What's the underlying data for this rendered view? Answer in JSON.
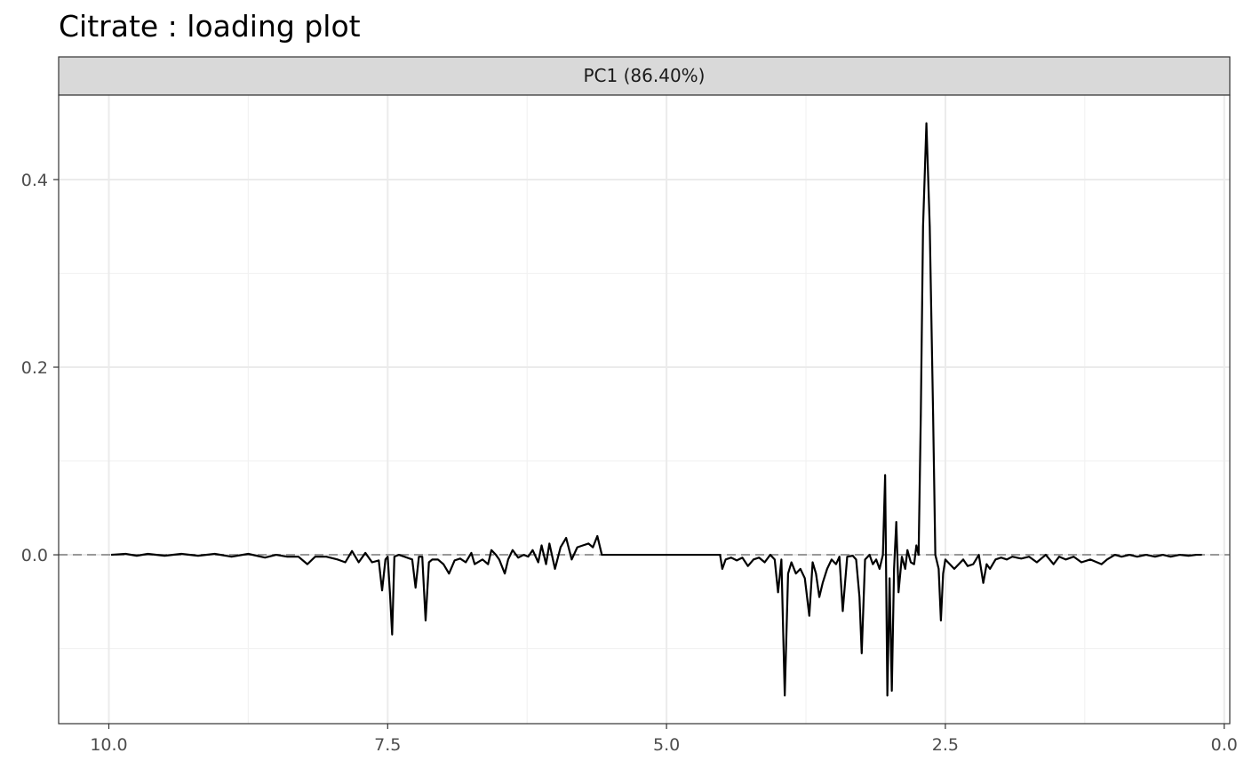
{
  "chart_data": {
    "type": "line",
    "title": "Citrate : loading plot",
    "facet_label": "PC1 (86.40%)",
    "xlabel": "",
    "ylabel": "",
    "x_reversed": true,
    "xlim": [
      10.45,
      -0.05
    ],
    "ylim": [
      -0.18,
      0.49
    ],
    "x_ticks": [
      10.0,
      7.5,
      5.0,
      2.5,
      0.0
    ],
    "x_tick_labels": [
      "10.0",
      "7.5",
      "5.0",
      "2.5",
      "0.0"
    ],
    "y_ticks": [
      0.0,
      0.2,
      0.4
    ],
    "y_tick_labels": [
      "0.0",
      "0.2",
      "0.4"
    ],
    "grid": true,
    "reference_line": {
      "y": 0.0,
      "style": "dashed",
      "color": "#999999"
    },
    "line_color": "#000000",
    "series": [
      {
        "values": [
          {
            "x": 9.98,
            "y": 0.0
          },
          {
            "x": 9.85,
            "y": 0.001
          },
          {
            "x": 9.75,
            "y": -0.001
          },
          {
            "x": 9.65,
            "y": 0.001
          },
          {
            "x": 9.5,
            "y": -0.001
          },
          {
            "x": 9.35,
            "y": 0.001
          },
          {
            "x": 9.2,
            "y": -0.001
          },
          {
            "x": 9.05,
            "y": 0.001
          },
          {
            "x": 8.9,
            "y": -0.002
          },
          {
            "x": 8.75,
            "y": 0.001
          },
          {
            "x": 8.6,
            "y": -0.003
          },
          {
            "x": 8.5,
            "y": 0.0
          },
          {
            "x": 8.4,
            "y": -0.002
          },
          {
            "x": 8.3,
            "y": -0.002
          },
          {
            "x": 8.22,
            "y": -0.01
          },
          {
            "x": 8.15,
            "y": -0.002
          },
          {
            "x": 8.05,
            "y": -0.002
          },
          {
            "x": 7.95,
            "y": -0.005
          },
          {
            "x": 7.88,
            "y": -0.008
          },
          {
            "x": 7.82,
            "y": 0.004
          },
          {
            "x": 7.76,
            "y": -0.008
          },
          {
            "x": 7.7,
            "y": 0.002
          },
          {
            "x": 7.64,
            "y": -0.008
          },
          {
            "x": 7.58,
            "y": -0.006
          },
          {
            "x": 7.55,
            "y": -0.038
          },
          {
            "x": 7.52,
            "y": -0.005
          },
          {
            "x": 7.5,
            "y": -0.002
          },
          {
            "x": 7.48,
            "y": -0.04
          },
          {
            "x": 7.46,
            "y": -0.085
          },
          {
            "x": 7.44,
            "y": -0.002
          },
          {
            "x": 7.4,
            "y": 0.0
          },
          {
            "x": 7.35,
            "y": -0.002
          },
          {
            "x": 7.28,
            "y": -0.005
          },
          {
            "x": 7.25,
            "y": -0.035
          },
          {
            "x": 7.22,
            "y": -0.002
          },
          {
            "x": 7.19,
            "y": -0.002
          },
          {
            "x": 7.16,
            "y": -0.07
          },
          {
            "x": 7.13,
            "y": -0.008
          },
          {
            "x": 7.1,
            "y": -0.005
          },
          {
            "x": 7.05,
            "y": -0.005
          },
          {
            "x": 7.0,
            "y": -0.01
          },
          {
            "x": 6.95,
            "y": -0.02
          },
          {
            "x": 6.9,
            "y": -0.006
          },
          {
            "x": 6.85,
            "y": -0.004
          },
          {
            "x": 6.8,
            "y": -0.008
          },
          {
            "x": 6.75,
            "y": 0.002
          },
          {
            "x": 6.72,
            "y": -0.01
          },
          {
            "x": 6.65,
            "y": -0.005
          },
          {
            "x": 6.6,
            "y": -0.01
          },
          {
            "x": 6.57,
            "y": 0.005
          },
          {
            "x": 6.53,
            "y": 0.0
          },
          {
            "x": 6.5,
            "y": -0.005
          },
          {
            "x": 6.45,
            "y": -0.02
          },
          {
            "x": 6.42,
            "y": -0.005
          },
          {
            "x": 6.38,
            "y": 0.005
          },
          {
            "x": 6.33,
            "y": -0.003
          },
          {
            "x": 6.28,
            "y": 0.0
          },
          {
            "x": 6.24,
            "y": -0.002
          },
          {
            "x": 6.2,
            "y": 0.005
          },
          {
            "x": 6.15,
            "y": -0.008
          },
          {
            "x": 6.12,
            "y": 0.01
          },
          {
            "x": 6.08,
            "y": -0.01
          },
          {
            "x": 6.05,
            "y": 0.012
          },
          {
            "x": 6.0,
            "y": -0.015
          },
          {
            "x": 5.95,
            "y": 0.008
          },
          {
            "x": 5.9,
            "y": 0.018
          },
          {
            "x": 5.85,
            "y": -0.005
          },
          {
            "x": 5.8,
            "y": 0.008
          },
          {
            "x": 5.75,
            "y": 0.01
          },
          {
            "x": 5.7,
            "y": 0.012
          },
          {
            "x": 5.66,
            "y": 0.008
          },
          {
            "x": 5.62,
            "y": 0.02
          },
          {
            "x": 5.58,
            "y": 0.0
          },
          {
            "x": 5.0,
            "y": 0.0
          },
          {
            "x": 4.52,
            "y": 0.0
          },
          {
            "x": 4.5,
            "y": -0.015
          },
          {
            "x": 4.47,
            "y": -0.005
          },
          {
            "x": 4.42,
            "y": -0.003
          },
          {
            "x": 4.37,
            "y": -0.006
          },
          {
            "x": 4.32,
            "y": -0.003
          },
          {
            "x": 4.27,
            "y": -0.012
          },
          {
            "x": 4.22,
            "y": -0.005
          },
          {
            "x": 4.17,
            "y": -0.003
          },
          {
            "x": 4.12,
            "y": -0.008
          },
          {
            "x": 4.07,
            "y": 0.0
          },
          {
            "x": 4.03,
            "y": -0.005
          },
          {
            "x": 4.0,
            "y": -0.04
          },
          {
            "x": 3.97,
            "y": -0.005
          },
          {
            "x": 3.94,
            "y": -0.15
          },
          {
            "x": 3.91,
            "y": -0.02
          },
          {
            "x": 3.88,
            "y": -0.008
          },
          {
            "x": 3.84,
            "y": -0.02
          },
          {
            "x": 3.8,
            "y": -0.015
          },
          {
            "x": 3.76,
            "y": -0.025
          },
          {
            "x": 3.72,
            "y": -0.065
          },
          {
            "x": 3.69,
            "y": -0.008
          },
          {
            "x": 3.66,
            "y": -0.02
          },
          {
            "x": 3.63,
            "y": -0.045
          },
          {
            "x": 3.6,
            "y": -0.03
          },
          {
            "x": 3.56,
            "y": -0.015
          },
          {
            "x": 3.52,
            "y": -0.005
          },
          {
            "x": 3.48,
            "y": -0.01
          },
          {
            "x": 3.45,
            "y": -0.002
          },
          {
            "x": 3.42,
            "y": -0.06
          },
          {
            "x": 3.38,
            "y": -0.002
          },
          {
            "x": 3.33,
            "y": -0.001
          },
          {
            "x": 3.3,
            "y": -0.005
          },
          {
            "x": 3.27,
            "y": -0.045
          },
          {
            "x": 3.25,
            "y": -0.105
          },
          {
            "x": 3.22,
            "y": -0.005
          },
          {
            "x": 3.18,
            "y": 0.0
          },
          {
            "x": 3.15,
            "y": -0.01
          },
          {
            "x": 3.12,
            "y": -0.005
          },
          {
            "x": 3.09,
            "y": -0.015
          },
          {
            "x": 3.06,
            "y": 0.0
          },
          {
            "x": 3.04,
            "y": 0.085
          },
          {
            "x": 3.02,
            "y": -0.15
          },
          {
            "x": 3.0,
            "y": -0.025
          },
          {
            "x": 2.98,
            "y": -0.145
          },
          {
            "x": 2.96,
            "y": -0.015
          },
          {
            "x": 2.94,
            "y": 0.035
          },
          {
            "x": 2.92,
            "y": -0.04
          },
          {
            "x": 2.89,
            "y": -0.002
          },
          {
            "x": 2.86,
            "y": -0.015
          },
          {
            "x": 2.84,
            "y": 0.005
          },
          {
            "x": 2.81,
            "y": -0.008
          },
          {
            "x": 2.78,
            "y": -0.01
          },
          {
            "x": 2.76,
            "y": 0.01
          },
          {
            "x": 2.74,
            "y": 0.0
          },
          {
            "x": 2.72,
            "y": 0.15
          },
          {
            "x": 2.7,
            "y": 0.35
          },
          {
            "x": 2.67,
            "y": 0.46
          },
          {
            "x": 2.64,
            "y": 0.35
          },
          {
            "x": 2.61,
            "y": 0.15
          },
          {
            "x": 2.59,
            "y": 0.0
          },
          {
            "x": 2.56,
            "y": -0.015
          },
          {
            "x": 2.54,
            "y": -0.07
          },
          {
            "x": 2.52,
            "y": -0.02
          },
          {
            "x": 2.5,
            "y": -0.005
          },
          {
            "x": 2.46,
            "y": -0.01
          },
          {
            "x": 2.42,
            "y": -0.015
          },
          {
            "x": 2.38,
            "y": -0.01
          },
          {
            "x": 2.34,
            "y": -0.005
          },
          {
            "x": 2.3,
            "y": -0.012
          },
          {
            "x": 2.25,
            "y": -0.01
          },
          {
            "x": 2.2,
            "y": 0.0
          },
          {
            "x": 2.16,
            "y": -0.03
          },
          {
            "x": 2.13,
            "y": -0.01
          },
          {
            "x": 2.1,
            "y": -0.015
          },
          {
            "x": 2.05,
            "y": -0.005
          },
          {
            "x": 2.0,
            "y": -0.003
          },
          {
            "x": 1.95,
            "y": -0.005
          },
          {
            "x": 1.9,
            "y": -0.002
          },
          {
            "x": 1.82,
            "y": -0.004
          },
          {
            "x": 1.75,
            "y": -0.002
          },
          {
            "x": 1.68,
            "y": -0.008
          },
          {
            "x": 1.6,
            "y": 0.0
          },
          {
            "x": 1.53,
            "y": -0.01
          },
          {
            "x": 1.48,
            "y": -0.002
          },
          {
            "x": 1.42,
            "y": -0.005
          },
          {
            "x": 1.35,
            "y": -0.002
          },
          {
            "x": 1.28,
            "y": -0.008
          },
          {
            "x": 1.2,
            "y": -0.005
          },
          {
            "x": 1.1,
            "y": -0.01
          },
          {
            "x": 1.05,
            "y": -0.005
          },
          {
            "x": 0.98,
            "y": 0.0
          },
          {
            "x": 0.92,
            "y": -0.002
          },
          {
            "x": 0.85,
            "y": 0.0
          },
          {
            "x": 0.78,
            "y": -0.002
          },
          {
            "x": 0.7,
            "y": 0.0
          },
          {
            "x": 0.62,
            "y": -0.002
          },
          {
            "x": 0.55,
            "y": 0.0
          },
          {
            "x": 0.48,
            "y": -0.002
          },
          {
            "x": 0.4,
            "y": 0.0
          },
          {
            "x": 0.32,
            "y": -0.001
          },
          {
            "x": 0.25,
            "y": 0.0
          },
          {
            "x": 0.2,
            "y": 0.0
          }
        ]
      }
    ]
  }
}
